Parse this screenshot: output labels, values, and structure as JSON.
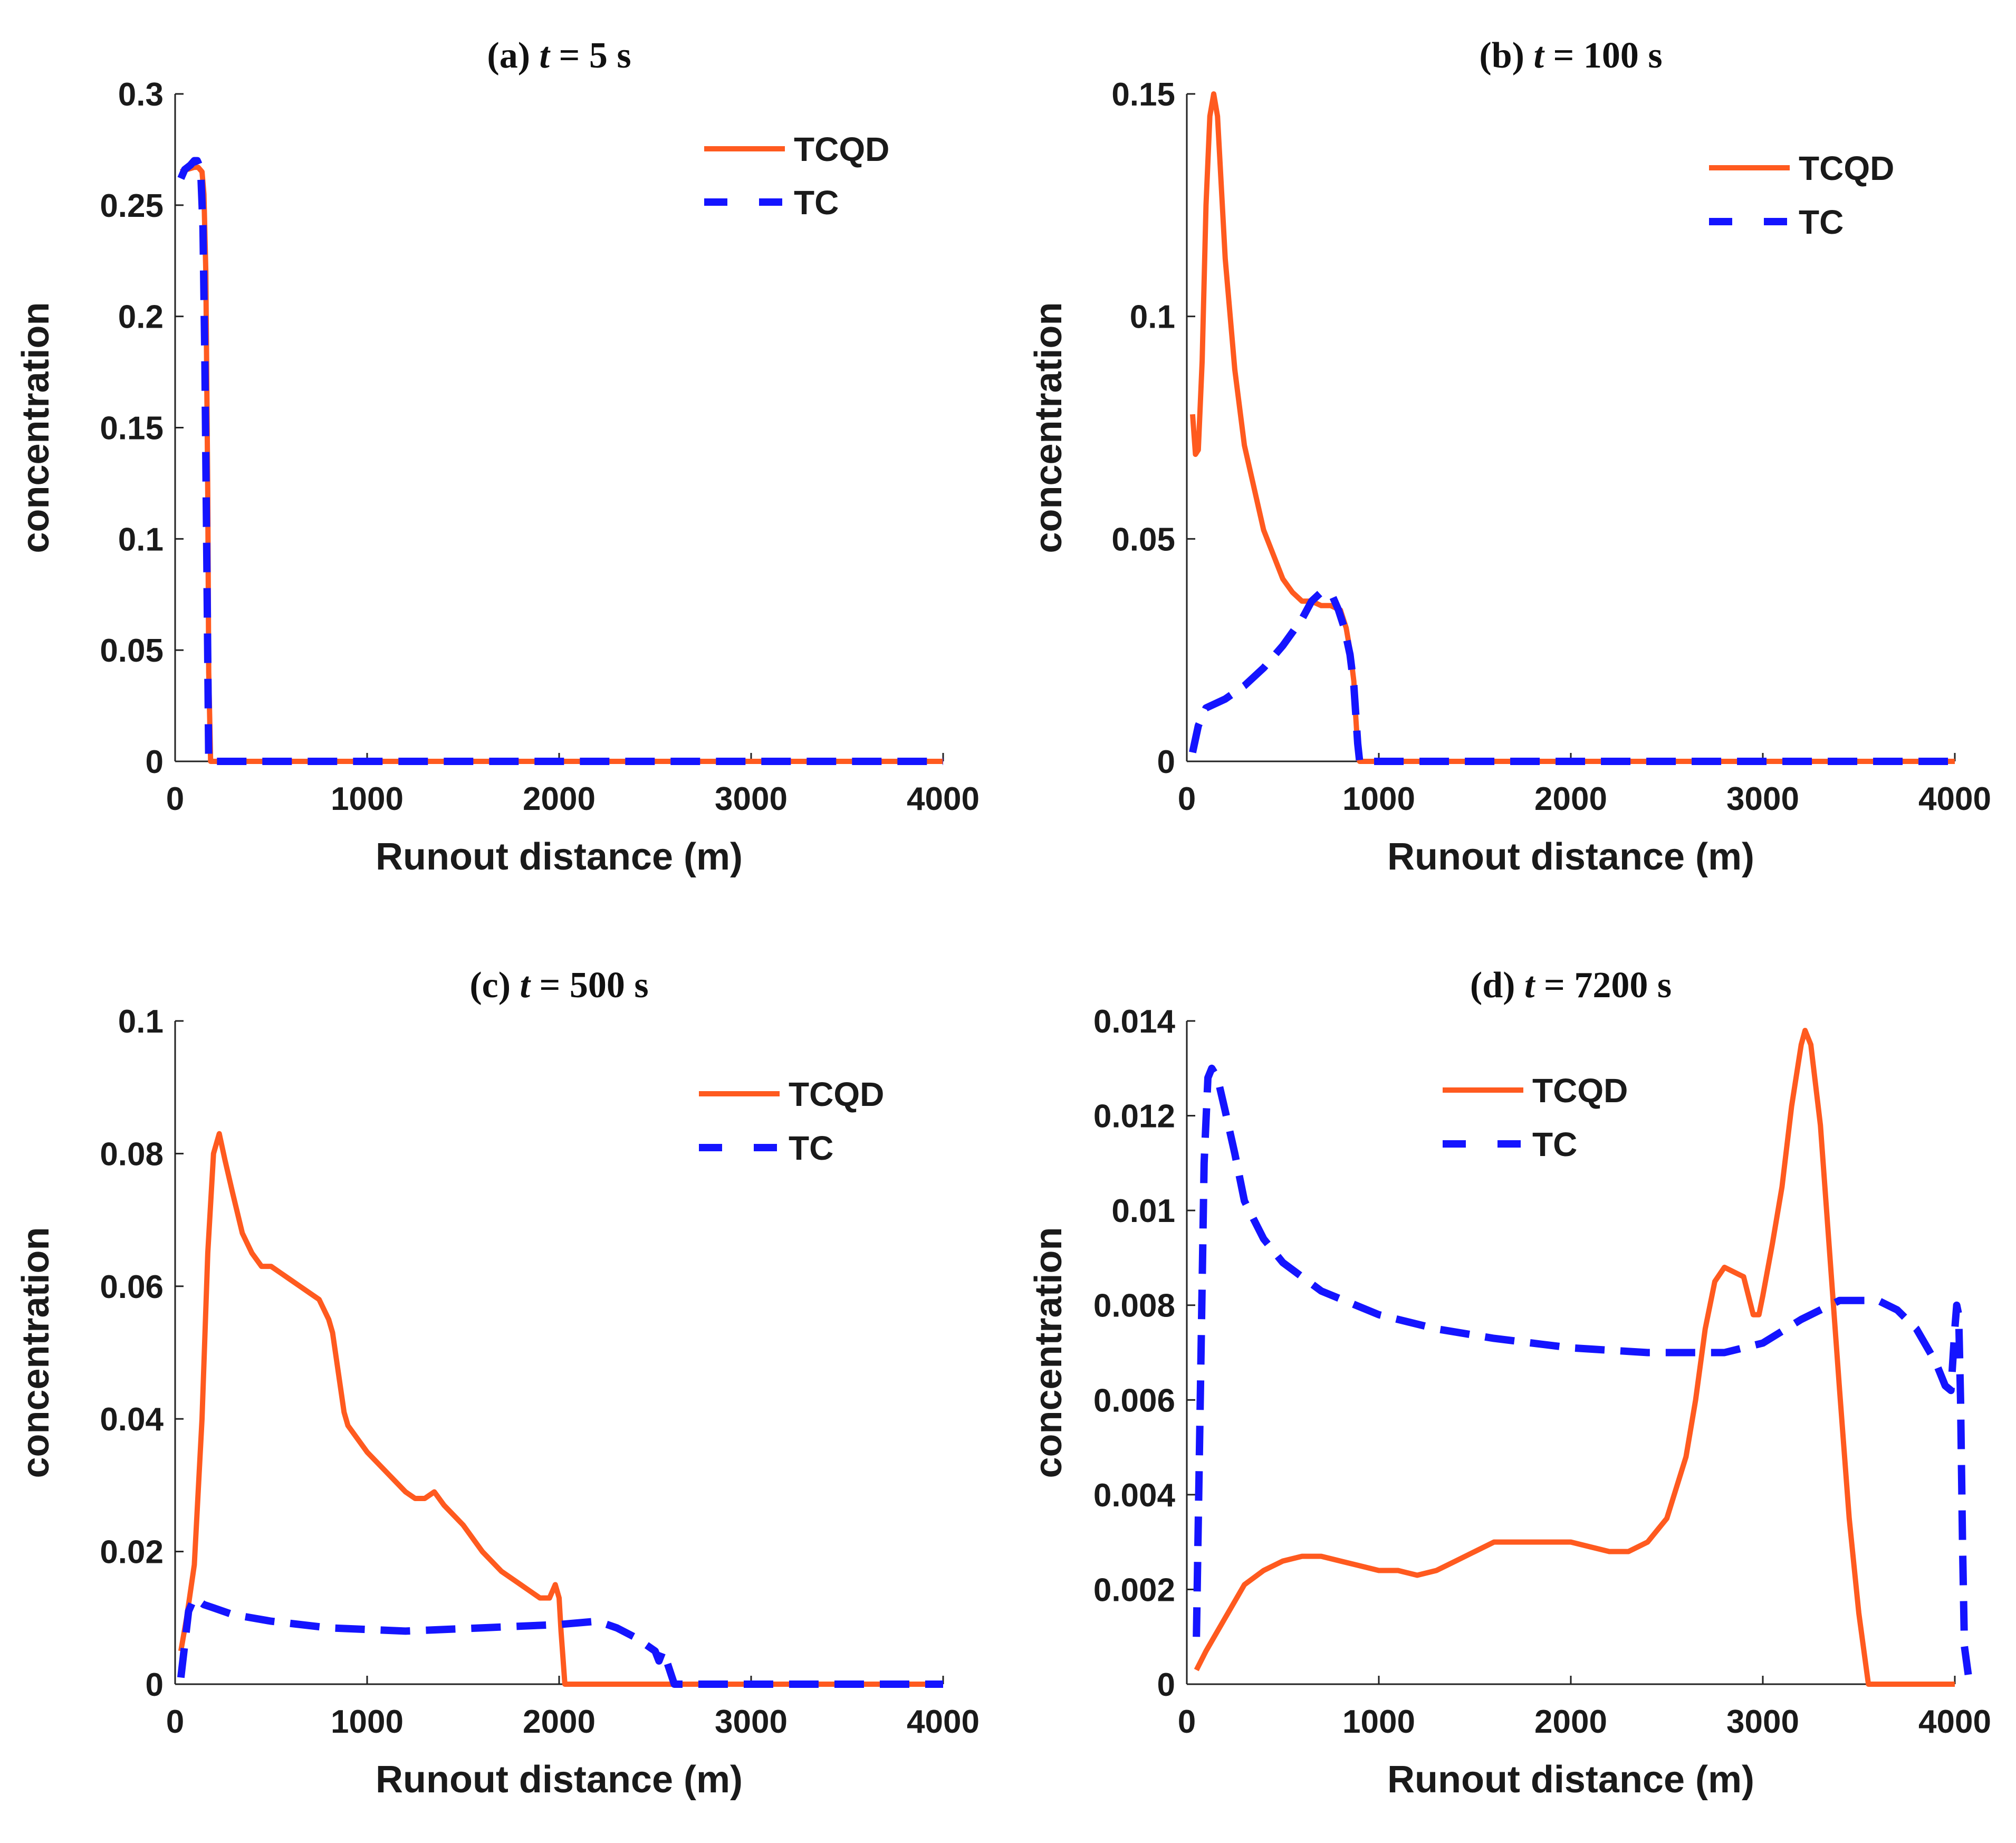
{
  "colors": {
    "TCQD": "#ff5a1f",
    "TC": "#1414ff",
    "axis": "#222222"
  },
  "chart_data": [
    {
      "type": "line",
      "panel_label": "(a)",
      "time_var": "t",
      "time_value": "= 5 s",
      "xlabel": "Runout distance (m)",
      "ylabel": "concentration",
      "xlim": [
        0,
        4000
      ],
      "ylim": [
        0,
        0.3
      ],
      "xticks": [
        0,
        1000,
        2000,
        3000,
        4000
      ],
      "xtick_labels": [
        "0",
        "1000",
        "2000",
        "3000",
        "4000"
      ],
      "yticks": [
        0,
        0.05,
        0.1,
        0.15,
        0.2,
        0.25,
        0.3
      ],
      "ytick_labels": [
        "0",
        "0.05",
        "0.1",
        "0.15",
        "0.2",
        "0.25",
        "0.3"
      ],
      "legend": [
        "TCQD",
        "TC"
      ],
      "legend_position": "top-right",
      "series": [
        {
          "name": "TCQD",
          "style": "solid",
          "x": [
            30,
            60,
            100,
            120,
            140,
            150,
            160,
            170,
            175,
            185,
            200,
            1000,
            2000,
            3000,
            4000
          ],
          "y": [
            0.265,
            0.266,
            0.267,
            0.267,
            0.265,
            0.255,
            0.22,
            0.12,
            0.04,
            0,
            0,
            0,
            0,
            0,
            0
          ]
        },
        {
          "name": "TC",
          "style": "dashed",
          "x": [
            30,
            50,
            80,
            100,
            115,
            125,
            135,
            145,
            155,
            165,
            175,
            200,
            1000,
            2000,
            3000,
            4000
          ],
          "y": [
            0.262,
            0.266,
            0.268,
            0.27,
            0.27,
            0.268,
            0.262,
            0.24,
            0.18,
            0.09,
            0,
            0,
            0,
            0,
            0,
            0
          ]
        }
      ]
    },
    {
      "type": "line",
      "panel_label": "(b)",
      "time_var": "t",
      "time_value": "= 100 s",
      "xlabel": "Runout distance (m)",
      "ylabel": "concentration",
      "xlim": [
        0,
        4000
      ],
      "ylim": [
        0,
        0.15
      ],
      "xticks": [
        0,
        1000,
        2000,
        3000,
        4000
      ],
      "xtick_labels": [
        "0",
        "1000",
        "2000",
        "3000",
        "4000"
      ],
      "yticks": [
        0,
        0.05,
        0.1,
        0.15
      ],
      "ytick_labels": [
        "0",
        "0.05",
        "0.1",
        "0.15"
      ],
      "legend": [
        "TCQD",
        "TC"
      ],
      "legend_position": "top-right",
      "series": [
        {
          "name": "TCQD",
          "style": "solid",
          "x": [
            30,
            45,
            60,
            80,
            100,
            120,
            140,
            160,
            200,
            250,
            300,
            400,
            500,
            550,
            600,
            650,
            700,
            750,
            800,
            830,
            850,
            870,
            880,
            890,
            900,
            1000,
            2000,
            3000,
            4000
          ],
          "y": [
            0.078,
            0.069,
            0.07,
            0.09,
            0.125,
            0.145,
            0.15,
            0.145,
            0.113,
            0.088,
            0.071,
            0.052,
            0.041,
            0.038,
            0.036,
            0.036,
            0.035,
            0.035,
            0.034,
            0.03,
            0.025,
            0.018,
            0.01,
            0.003,
            0,
            0,
            0,
            0,
            0
          ]
        },
        {
          "name": "TC",
          "style": "dashed",
          "x": [
            30,
            60,
            100,
            200,
            300,
            400,
            500,
            600,
            650,
            700,
            730,
            760,
            790,
            820,
            850,
            870,
            890,
            900,
            1000,
            2000,
            3000,
            4000
          ],
          "y": [
            0.002,
            0.008,
            0.012,
            0.014,
            0.017,
            0.021,
            0.026,
            0.032,
            0.036,
            0.038,
            0.038,
            0.037,
            0.034,
            0.03,
            0.024,
            0.017,
            0.004,
            0,
            0,
            0,
            0,
            0
          ]
        }
      ]
    },
    {
      "type": "line",
      "panel_label": "(c)",
      "time_var": "t",
      "time_value": "= 500 s",
      "xlabel": "Runout distance (m)",
      "ylabel": "concentration",
      "xlim": [
        0,
        4000
      ],
      "ylim": [
        0,
        0.1
      ],
      "xticks": [
        0,
        1000,
        2000,
        3000,
        4000
      ],
      "xtick_labels": [
        "0",
        "1000",
        "2000",
        "3000",
        "4000"
      ],
      "yticks": [
        0,
        0.02,
        0.04,
        0.06,
        0.08,
        0.1
      ],
      "ytick_labels": [
        "0",
        "0.02",
        "0.04",
        "0.06",
        "0.08",
        "0.1"
      ],
      "legend": [
        "TCQD",
        "TC"
      ],
      "legend_position": "top-right",
      "series": [
        {
          "name": "TCQD",
          "style": "solid",
          "x": [
            30,
            60,
            100,
            140,
            170,
            200,
            230,
            260,
            300,
            350,
            400,
            450,
            500,
            550,
            600,
            650,
            700,
            750,
            800,
            820,
            850,
            880,
            900,
            950,
            1000,
            1100,
            1200,
            1250,
            1300,
            1350,
            1400,
            1500,
            1600,
            1700,
            1800,
            1900,
            1950,
            1980,
            2000,
            2010,
            2020,
            2030,
            2100,
            3000,
            4000
          ],
          "y": [
            0.005,
            0.01,
            0.018,
            0.04,
            0.065,
            0.08,
            0.083,
            0.079,
            0.074,
            0.068,
            0.065,
            0.063,
            0.063,
            0.062,
            0.061,
            0.06,
            0.059,
            0.058,
            0.055,
            0.053,
            0.047,
            0.041,
            0.039,
            0.037,
            0.035,
            0.032,
            0.029,
            0.028,
            0.028,
            0.029,
            0.027,
            0.024,
            0.02,
            0.017,
            0.015,
            0.013,
            0.013,
            0.015,
            0.013,
            0.008,
            0.004,
            0,
            0,
            0,
            0
          ]
        },
        {
          "name": "TC",
          "style": "dashed",
          "x": [
            30,
            50,
            70,
            100,
            150,
            200,
            300,
            500,
            800,
            1200,
            1600,
            2000,
            2200,
            2300,
            2400,
            2450,
            2500,
            2520,
            2540,
            2560,
            2600,
            3000,
            4000
          ],
          "y": [
            0.001,
            0.006,
            0.011,
            0.013,
            0.012,
            0.0115,
            0.0105,
            0.0095,
            0.0085,
            0.008,
            0.0085,
            0.009,
            0.0095,
            0.0085,
            0.007,
            0.006,
            0.005,
            0.0035,
            0.005,
            0.0035,
            0,
            0,
            0
          ]
        }
      ]
    },
    {
      "type": "line",
      "panel_label": "(d)",
      "time_var": "t",
      "time_value": "= 7200 s",
      "xlabel": "Runout distance (m)",
      "ylabel": "concentration",
      "xlim": [
        0,
        4000
      ],
      "ylim": [
        0,
        0.014
      ],
      "xticks": [
        0,
        1000,
        2000,
        3000,
        4000
      ],
      "xtick_labels": [
        "0",
        "1000",
        "2000",
        "3000",
        "4000"
      ],
      "yticks": [
        0,
        0.002,
        0.004,
        0.006,
        0.008,
        0.01,
        0.012,
        0.014
      ],
      "ytick_labels": [
        "0",
        "0.002",
        "0.004",
        "0.006",
        "0.008",
        "0.01",
        "0.012",
        "0.014"
      ],
      "legend": [
        "TCQD",
        "TC"
      ],
      "legend_position": "top-center",
      "series": [
        {
          "name": "TCQD",
          "style": "solid",
          "x": [
            50,
            100,
            200,
            300,
            400,
            500,
            600,
            700,
            800,
            900,
            1000,
            1100,
            1200,
            1300,
            1400,
            1500,
            1600,
            1700,
            1800,
            1900,
            2000,
            2100,
            2200,
            2300,
            2400,
            2500,
            2600,
            2650,
            2700,
            2750,
            2800,
            2850,
            2900,
            2950,
            2980,
            3000,
            3050,
            3100,
            3150,
            3200,
            3220,
            3250,
            3300,
            3350,
            3400,
            3450,
            3500,
            3550,
            3600,
            4000
          ],
          "y": [
            0.0003,
            0.0007,
            0.0014,
            0.0021,
            0.0024,
            0.0026,
            0.0027,
            0.0027,
            0.0026,
            0.0025,
            0.0024,
            0.0024,
            0.0023,
            0.0024,
            0.0026,
            0.0028,
            0.003,
            0.003,
            0.003,
            0.003,
            0.003,
            0.0029,
            0.0028,
            0.0028,
            0.003,
            0.0035,
            0.0048,
            0.006,
            0.0075,
            0.0085,
            0.0088,
            0.0087,
            0.0086,
            0.0078,
            0.0078,
            0.0082,
            0.0093,
            0.0105,
            0.0122,
            0.0135,
            0.0138,
            0.0135,
            0.0118,
            0.009,
            0.0062,
            0.0035,
            0.0015,
            0,
            0,
            0
          ]
        },
        {
          "name": "TC",
          "style": "dashed",
          "x": [
            50,
            70,
            90,
            110,
            130,
            160,
            200,
            250,
            300,
            400,
            500,
            700,
            1000,
            1300,
            1600,
            2000,
            2400,
            2800,
            3000,
            3200,
            3400,
            3600,
            3700,
            3800,
            3900,
            3950,
            3980,
            4000,
            4010,
            4020,
            4030,
            4040,
            4050,
            4070
          ],
          "y": [
            0.001,
            0.006,
            0.011,
            0.0128,
            0.013,
            0.0128,
            0.0121,
            0.0112,
            0.0102,
            0.0094,
            0.0089,
            0.0083,
            0.0078,
            0.0075,
            0.0073,
            0.0071,
            0.007,
            0.007,
            0.0072,
            0.0077,
            0.0081,
            0.0081,
            0.0079,
            0.0075,
            0.0068,
            0.0063,
            0.0062,
            0.0075,
            0.008,
            0.0078,
            0.006,
            0.003,
            0.0008,
            0.0002
          ]
        }
      ]
    }
  ]
}
